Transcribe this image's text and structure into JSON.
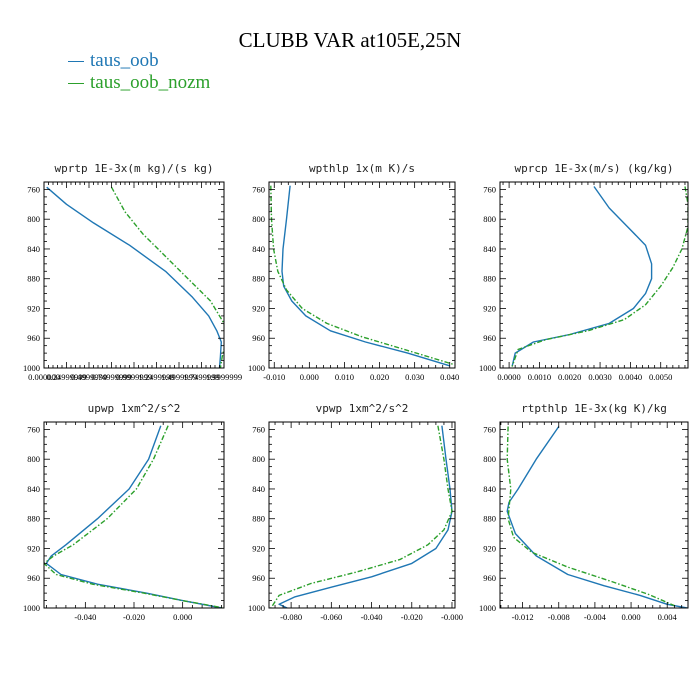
{
  "title": "CLUBB VAR at105E,25N",
  "legend": [
    {
      "name": "taus_oob",
      "color": "#1f77b4"
    },
    {
      "name": "taus_oob_nozm",
      "color": "#2ca02c"
    }
  ],
  "chart_data": [
    {
      "type": "line",
      "title": "wprtp  1E-3x(m kg)/(s kg)",
      "y_ticks": [
        760,
        800,
        840,
        880,
        920,
        960,
        1000
      ],
      "ylim": [
        750,
        1000
      ],
      "y_reversed": true,
      "xlim": [
        0.0,
        2.0
      ],
      "x_tick_values": [
        0.0,
        0.25,
        0.5,
        0.75,
        1.0,
        1.25,
        1.5,
        1.75,
        2.0
      ],
      "x_tick_labels": [
        "0.000000",
        "0.24999999",
        "0.4999999",
        "0.74999999",
        "0.9999999",
        "1.2499999",
        "1.4999999",
        "1.7499999",
        "1.9999999"
      ],
      "series": [
        {
          "name": "taus_oob",
          "x": [
            0.03,
            0.25,
            0.55,
            0.95,
            1.35,
            1.65,
            1.83,
            1.92,
            1.97,
            1.96,
            1.95
          ],
          "y": [
            757,
            780,
            805,
            835,
            870,
            905,
            930,
            950,
            965,
            985,
            1000
          ]
        },
        {
          "name": "taus_oob_nozm",
          "x": [
            0.75,
            0.9,
            1.1,
            1.35,
            1.6,
            1.85,
            2.0,
            2.02,
            1.98,
            1.96
          ],
          "y": [
            757,
            790,
            820,
            850,
            880,
            910,
            940,
            965,
            985,
            1000
          ]
        }
      ]
    },
    {
      "type": "line",
      "title": "wpthlp  1x(m K)/s",
      "y_ticks": [
        760,
        800,
        840,
        880,
        920,
        960,
        1000
      ],
      "ylim": [
        750,
        1000
      ],
      "y_reversed": true,
      "xlim": [
        -0.0115,
        0.0415
      ],
      "x_tick_values": [
        -0.01,
        0.0,
        0.01,
        0.02,
        0.03,
        0.04
      ],
      "x_tick_labels": [
        "-0.010",
        "0.000",
        "0.010",
        "0.020",
        "0.030",
        "0.040"
      ],
      "series": [
        {
          "name": "taus_oob",
          "x": [
            -0.0055,
            -0.0065,
            -0.0075,
            -0.0078,
            -0.0073,
            -0.005,
            -0.001,
            0.006,
            0.016,
            0.028,
            0.04
          ],
          "y": [
            755,
            800,
            840,
            870,
            890,
            910,
            930,
            950,
            965,
            980,
            997
          ]
        },
        {
          "name": "taus_oob_nozm",
          "x": [
            -0.011,
            -0.0108,
            -0.0102,
            -0.009,
            -0.0065,
            -0.002,
            0.005,
            0.015,
            0.027,
            0.041
          ],
          "y": [
            755,
            800,
            840,
            870,
            895,
            920,
            940,
            958,
            975,
            995
          ]
        }
      ]
    },
    {
      "type": "line",
      "title": "wprcp  1E-3x(m/s) (kg/kg)",
      "y_ticks": [
        760,
        800,
        840,
        880,
        920,
        960,
        1000
      ],
      "ylim": [
        750,
        1000
      ],
      "y_reversed": true,
      "xlim": [
        -0.0003,
        0.0059
      ],
      "x_tick_values": [
        0.0,
        0.001,
        0.002,
        0.003,
        0.004,
        0.005
      ],
      "x_tick_labels": [
        "0.0000",
        "0.0010",
        "0.0020",
        "0.0030",
        "0.0040",
        "0.0050"
      ],
      "series": [
        {
          "name": "taus_oob",
          "x": [
            0.0028,
            0.0033,
            0.0039,
            0.0045,
            0.0047,
            0.0047,
            0.0045,
            0.0041,
            0.0033,
            0.002,
            0.0008,
            0.0002,
            0.0001
          ],
          "y": [
            756,
            785,
            810,
            835,
            860,
            880,
            900,
            920,
            940,
            955,
            965,
            980,
            998
          ]
        },
        {
          "name": "taus_oob_nozm",
          "x": [
            0.0058,
            0.0059,
            0.0059,
            0.0057,
            0.0054,
            0.005,
            0.0045,
            0.0038,
            0.0026,
            0.0012,
            0.0003,
            0.0001
          ],
          "y": [
            756,
            780,
            810,
            840,
            865,
            890,
            915,
            935,
            950,
            962,
            975,
            998
          ]
        }
      ]
    },
    {
      "type": "line",
      "title": "upwp  1xm^2/s^2",
      "y_ticks": [
        760,
        800,
        840,
        880,
        920,
        960,
        1000
      ],
      "ylim": [
        750,
        1000
      ],
      "y_reversed": true,
      "xlim": [
        -0.057,
        0.017
      ],
      "x_tick_values": [
        -0.04,
        -0.02,
        0.0
      ],
      "x_tick_labels": [
        "-0.040",
        "-0.020",
        "0.000"
      ],
      "series": [
        {
          "name": "taus_oob",
          "x": [
            -0.009,
            -0.014,
            -0.022,
            -0.035,
            -0.048,
            -0.054,
            -0.056,
            -0.05,
            -0.035,
            -0.015,
            0.0,
            0.016
          ],
          "y": [
            755,
            800,
            840,
            880,
            915,
            930,
            940,
            955,
            968,
            980,
            990,
            1000
          ]
        },
        {
          "name": "taus_oob_nozm",
          "x": [
            -0.006,
            -0.012,
            -0.019,
            -0.031,
            -0.045,
            -0.053,
            -0.057,
            -0.052,
            -0.037,
            -0.016,
            0.0,
            0.017
          ],
          "y": [
            755,
            800,
            840,
            880,
            915,
            930,
            940,
            955,
            968,
            980,
            990,
            1000
          ]
        }
      ]
    },
    {
      "type": "line",
      "title": "vpwp  1xm^2/s^2",
      "y_ticks": [
        760,
        800,
        840,
        880,
        920,
        960,
        1000
      ],
      "ylim": [
        750,
        1000
      ],
      "y_reversed": true,
      "xlim": [
        -0.091,
        0.0015
      ],
      "x_tick_values": [
        -0.08,
        -0.06,
        -0.04,
        -0.02,
        0.0
      ],
      "x_tick_labels": [
        "-0.080",
        "-0.060",
        "-0.040",
        "-0.020",
        "-0.000"
      ],
      "series": [
        {
          "name": "taus_oob",
          "x": [
            -0.005,
            -0.003,
            -0.001,
            0.0,
            -0.002,
            -0.008,
            -0.02,
            -0.04,
            -0.06,
            -0.078,
            -0.086,
            -0.082
          ],
          "y": [
            755,
            800,
            840,
            870,
            895,
            920,
            940,
            958,
            972,
            985,
            995,
            1000
          ]
        },
        {
          "name": "taus_oob_nozm",
          "x": [
            -0.007,
            -0.004,
            -0.002,
            0.0,
            -0.004,
            -0.012,
            -0.026,
            -0.048,
            -0.07,
            -0.086,
            -0.09
          ],
          "y": [
            755,
            800,
            840,
            870,
            895,
            915,
            935,
            952,
            967,
            983,
            1000
          ]
        }
      ]
    },
    {
      "type": "line",
      "title": "rtpthlp  1E-3x(kg K)/kg",
      "y_ticks": [
        760,
        800,
        840,
        880,
        920,
        960,
        1000
      ],
      "ylim": [
        750,
        1000
      ],
      "y_reversed": true,
      "xlim": [
        -0.0145,
        0.0063
      ],
      "x_tick_values": [
        -0.012,
        -0.008,
        -0.004,
        0.0,
        0.004
      ],
      "x_tick_labels": [
        "-0.012",
        "-0.008",
        "-0.004",
        "0.000",
        "0.004"
      ],
      "series": [
        {
          "name": "taus_oob",
          "x": [
            -0.008,
            -0.0105,
            -0.0125,
            -0.0135,
            -0.0137,
            -0.0128,
            -0.0105,
            -0.007,
            -0.003,
            0.001,
            0.004,
            0.0062
          ],
          "y": [
            756,
            800,
            840,
            858,
            870,
            900,
            930,
            955,
            970,
            983,
            995,
            1000
          ]
        },
        {
          "name": "taus_oob_nozm",
          "x": [
            -0.0136,
            -0.0137,
            -0.0133,
            -0.0136,
            -0.013,
            -0.011,
            -0.007,
            -0.002,
            0.002,
            0.005
          ],
          "y": [
            756,
            800,
            840,
            880,
            905,
            925,
            945,
            965,
            982,
            998
          ]
        }
      ]
    }
  ]
}
